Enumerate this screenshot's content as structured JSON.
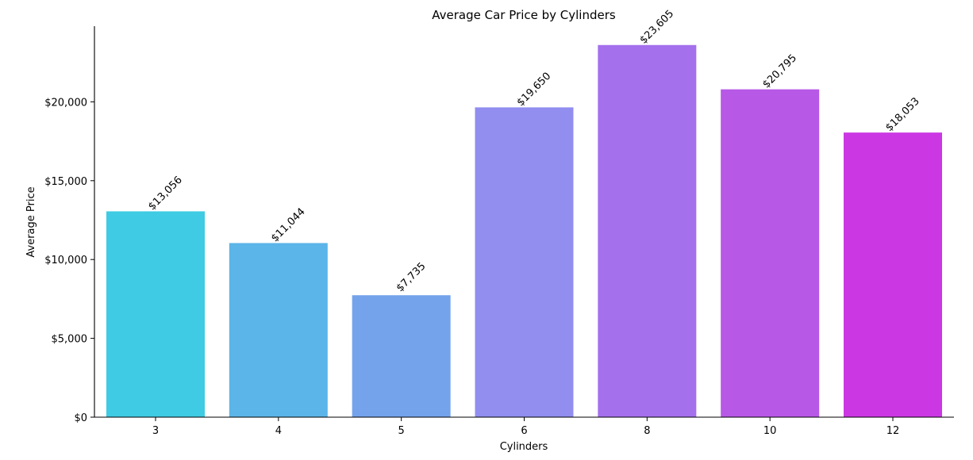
{
  "chart_data": {
    "type": "bar",
    "title": "Average Car Price by Cylinders",
    "xlabel": "Cylinders",
    "ylabel": "Average Price",
    "categories": [
      "3",
      "4",
      "5",
      "6",
      "8",
      "10",
      "12"
    ],
    "values": [
      13056,
      11044,
      7735,
      19650,
      23605,
      20795,
      18053
    ],
    "value_labels": [
      "$13,056",
      "$11,044",
      "$7,735",
      "$19,650",
      "$23,605",
      "$20,795",
      "$18,053"
    ],
    "colors": [
      "#3ecbe3",
      "#5bb5e8",
      "#75a3eb",
      "#918eef",
      "#a470ec",
      "#b758e7",
      "#cb38e3"
    ],
    "yticks": [
      0,
      5000,
      10000,
      15000,
      20000
    ],
    "ytick_labels": [
      "$0",
      "$5,000",
      "$10,000",
      "$15,000",
      "$20,000"
    ],
    "ylim": [
      0,
      24800
    ],
    "grid": false,
    "legend": "none"
  }
}
